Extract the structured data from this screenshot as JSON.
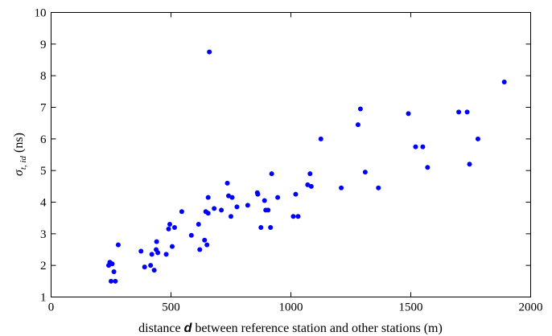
{
  "chart_data": {
    "type": "scatter",
    "title": "",
    "xlabel": {
      "pre": "distance ",
      "var": "d",
      "post": " between reference station and other stations (m)"
    },
    "ylabel": {
      "sigma": "σ",
      "sub": "t, id",
      "unit": " (ns)"
    },
    "xlim": [
      0,
      2000
    ],
    "ylim": [
      1,
      10
    ],
    "xticks": [
      "0",
      "500",
      "1000",
      "1500",
      "2000"
    ],
    "yticks": [
      "1",
      "2",
      "3",
      "4",
      "5",
      "6",
      "7",
      "8",
      "9",
      "10"
    ],
    "grid": false,
    "point_color": "#0000ff",
    "series": [
      {
        "points": [
          [
            240,
            2.0
          ],
          [
            245,
            2.1
          ],
          [
            250,
            1.5
          ],
          [
            255,
            2.05
          ],
          [
            262,
            1.8
          ],
          [
            268,
            1.5
          ],
          [
            280,
            2.65
          ],
          [
            375,
            2.45
          ],
          [
            390,
            1.95
          ],
          [
            415,
            2.0
          ],
          [
            420,
            2.35
          ],
          [
            430,
            1.85
          ],
          [
            438,
            2.5
          ],
          [
            440,
            2.75
          ],
          [
            445,
            2.4
          ],
          [
            480,
            2.35
          ],
          [
            490,
            3.15
          ],
          [
            495,
            3.3
          ],
          [
            505,
            2.6
          ],
          [
            515,
            3.2
          ],
          [
            545,
            3.7
          ],
          [
            585,
            2.95
          ],
          [
            615,
            3.3
          ],
          [
            620,
            2.5
          ],
          [
            640,
            2.8
          ],
          [
            645,
            3.7
          ],
          [
            650,
            2.65
          ],
          [
            655,
            3.65
          ],
          [
            655,
            4.15
          ],
          [
            660,
            8.75
          ],
          [
            680,
            3.8
          ],
          [
            710,
            3.75
          ],
          [
            735,
            4.6
          ],
          [
            740,
            4.2
          ],
          [
            750,
            3.55
          ],
          [
            755,
            4.15
          ],
          [
            775,
            3.85
          ],
          [
            820,
            3.9
          ],
          [
            860,
            4.3
          ],
          [
            862,
            4.25
          ],
          [
            875,
            3.2
          ],
          [
            890,
            4.05
          ],
          [
            895,
            3.75
          ],
          [
            905,
            3.75
          ],
          [
            915,
            3.2
          ],
          [
            920,
            4.9
          ],
          [
            945,
            4.15
          ],
          [
            1010,
            3.55
          ],
          [
            1020,
            4.25
          ],
          [
            1030,
            3.55
          ],
          [
            1070,
            4.55
          ],
          [
            1080,
            4.9
          ],
          [
            1085,
            4.5
          ],
          [
            1125,
            6.0
          ],
          [
            1210,
            4.45
          ],
          [
            1280,
            6.45
          ],
          [
            1290,
            6.95
          ],
          [
            1310,
            4.95
          ],
          [
            1365,
            4.45
          ],
          [
            1490,
            6.8
          ],
          [
            1520,
            5.75
          ],
          [
            1550,
            5.75
          ],
          [
            1570,
            5.1
          ],
          [
            1700,
            6.85
          ],
          [
            1735,
            6.85
          ],
          [
            1745,
            5.2
          ],
          [
            1780,
            6.0
          ],
          [
            1890,
            7.8
          ]
        ]
      }
    ]
  }
}
